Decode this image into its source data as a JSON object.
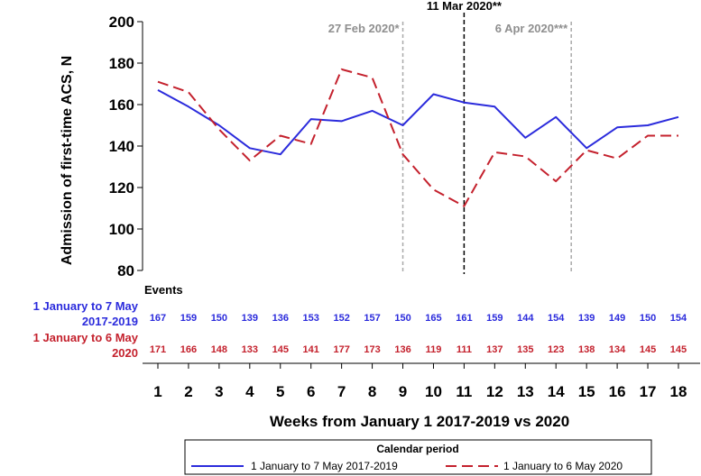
{
  "chart_data": {
    "type": "line",
    "title": "",
    "xlabel": "Weeks from January 1 2017-2019 vs 2020",
    "ylabel": "Admission of first-time ACS, N",
    "x": [
      1,
      2,
      3,
      4,
      5,
      6,
      7,
      8,
      9,
      10,
      11,
      12,
      13,
      14,
      15,
      16,
      17,
      18
    ],
    "xlim": [
      1,
      18
    ],
    "ylim": [
      80,
      200
    ],
    "yticks": [
      80,
      100,
      120,
      140,
      160,
      180,
      200
    ],
    "grid": false,
    "events_label": "Events",
    "series": [
      {
        "name": "1 January to 7 May 2017-2019",
        "row_label": [
          "1 January to 7 May",
          "2017-2019"
        ],
        "color": "#2b2bdc",
        "style": "solid",
        "values": [
          167,
          159,
          150,
          139,
          136,
          153,
          152,
          157,
          150,
          165,
          161,
          159,
          144,
          154,
          139,
          149,
          150,
          154
        ]
      },
      {
        "name": "1 January to 6 May 2020",
        "row_label": [
          "1 January to 6 May",
          "2020"
        ],
        "color": "#c4212d",
        "style": "dashed",
        "values": [
          171,
          166,
          148,
          133,
          145,
          141,
          177,
          173,
          136,
          119,
          111,
          137,
          135,
          123,
          138,
          134,
          145,
          145
        ]
      }
    ],
    "annotations": [
      {
        "x": 9,
        "label": "27 Feb 2020*",
        "color": "#a9a9a9"
      },
      {
        "x": 11,
        "label": "11 Mar 2020**",
        "color": "#000000"
      },
      {
        "x": 14.5,
        "label": "6 Apr 2020***",
        "color": "#a9a9a9"
      }
    ],
    "legend": {
      "title": "Calendar period",
      "placement": "bottom"
    }
  }
}
